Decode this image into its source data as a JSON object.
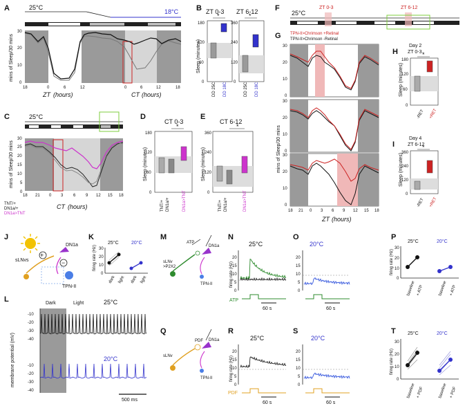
{
  "panels": {
    "A": {
      "letter": "A",
      "temp_left": "25°C",
      "temp_right": "18°C",
      "ylabel": "mins of Sleep/30 mins",
      "zt_label": "ZT",
      "ct_label": "CT",
      "hours": "(hours)",
      "yticks": [
        "0",
        "10",
        "20",
        "30"
      ],
      "xticks_zt": [
        "18",
        "0",
        "6",
        "12"
      ],
      "xticks_ct": [
        "0",
        "6",
        "12",
        "18"
      ]
    },
    "B": {
      "letter": "B",
      "title1": "ZT 0-3",
      "title2": "ZT 6-12",
      "ylabel": "Sleep (minutes)",
      "yticks": [
        "0",
        "60",
        "120",
        "180"
      ],
      "yticks2": [
        "0",
        "120",
        "240",
        "360"
      ],
      "xl1": "DD 25C",
      "xl2": "DD 18C",
      "star": "*"
    },
    "C": {
      "letter": "C",
      "temp": "25°C",
      "ylabel": "mins of Sleep/30 mins",
      "xlabel": "CT",
      "hours": "(hours)",
      "yticks": [
        "0",
        "5",
        "10",
        "15",
        "20",
        "25",
        "30"
      ],
      "xticks": [
        "18",
        "21",
        "0",
        "3",
        "6",
        "9",
        "12",
        "15",
        "18"
      ],
      "legend": [
        "TNT/+",
        "DN1a/+",
        "DN1a>TNT"
      ]
    },
    "D": {
      "letter": "D",
      "title": "CT 0-3",
      "ylabel": "Sleep (minutes)",
      "yticks": [
        "0",
        "60",
        "120",
        "180"
      ],
      "xl": [
        "TNT/+",
        "DN1a/+",
        "DN1a>TNT"
      ],
      "star": "*"
    },
    "E": {
      "letter": "E",
      "title": "CT 6-12",
      "ylabel": "Sleep (minutes)",
      "yticks": [
        "0",
        "120",
        "240",
        "360"
      ],
      "xl": [
        "TNT/+",
        "DN1a/+",
        "DN1a>TNT"
      ],
      "star": "*"
    },
    "F": {
      "letter": "F",
      "temp": "25°C",
      "w1": "ZT 0-3",
      "w2": "ZT 6-12"
    },
    "G": {
      "letter": "G",
      "leg1": "TPN-II>Chrimson +Retinal",
      "leg2": "TPN-II>Chrimson -Retinal",
      "ylabel": "mins of Sleep/30 mins",
      "xlabel": "ZT",
      "hours": "(hours)",
      "xticks": [
        "18",
        "21",
        "0",
        "3",
        "6",
        "9",
        "12",
        "15",
        "18"
      ],
      "yticks": [
        "0",
        "10",
        "20",
        "30"
      ]
    },
    "H": {
      "letter": "H",
      "title1": "Day 2",
      "title2": "ZT 0-3",
      "ylabel": "Sleep (minutes)",
      "yticks": [
        "0",
        "60",
        "120",
        "180"
      ],
      "xl": [
        "-RET",
        "+RET"
      ],
      "star": "*"
    },
    "I": {
      "letter": "I",
      "title1": "Day 4",
      "title2": "ZT 6-12",
      "ylabel": "Sleep (minutes)",
      "yticks": [
        "0",
        "120",
        "240",
        "360"
      ],
      "xl": [
        "-RET",
        "+RET"
      ],
      "star": "*"
    },
    "J": {
      "letter": "J",
      "n1": "DN1a",
      "n2": "sLNvs",
      "n3": "TPN-II",
      "plus": "+",
      "minus": "−"
    },
    "K": {
      "letter": "K",
      "t1": "25°C",
      "t2": "20°C",
      "ylabel": "firing rate (Hz)",
      "yticks": [
        "0",
        "10",
        "20",
        "30"
      ],
      "x1": "dark",
      "x2": "light"
    },
    "L": {
      "letter": "L",
      "dark": "Dark",
      "light": "Light",
      "t1": "25°C",
      "t2": "20°C",
      "ylabel": "membrane potential (mV)",
      "yticks": [
        "-10",
        "-20",
        "-30",
        "-40"
      ],
      "scale": "500 ms"
    },
    "M": {
      "letter": "M",
      "a1": "sLNv",
      "a2": ">P2X2",
      "n1": "DN1a",
      "n2": "TPN-II",
      "atp": "ATP"
    },
    "N": {
      "letter": "N",
      "temp": "25°C",
      "ylabel": "firing rate (Hz)",
      "yticks": [
        "0",
        "5",
        "10",
        "15",
        "20"
      ],
      "stim": "ATP",
      "scale": "60 s"
    },
    "O": {
      "letter": "O",
      "temp": "20°C",
      "yticks": [
        "0",
        "5",
        "10",
        "15",
        "20"
      ],
      "scale": "60 s"
    },
    "P": {
      "letter": "P",
      "t1": "25°C",
      "t2": "20°C",
      "ylabel": "firing rate (Hz)",
      "yticks": [
        "0",
        "10",
        "20",
        "30"
      ],
      "x1": "baseline",
      "x2": "+ ATP"
    },
    "Q": {
      "letter": "Q",
      "a1": "sLNv",
      "n1": "DN1a",
      "n2": "TPN-II",
      "pdf": "PDF"
    },
    "R": {
      "letter": "R",
      "temp": "25°C",
      "ylabel": "firing rate (Hz)",
      "yticks": [
        "0",
        "5",
        "10",
        "15",
        "20"
      ],
      "stim": "PDF",
      "scale": "60 s"
    },
    "S": {
      "letter": "S",
      "temp": "20°C",
      "yticks": [
        "0",
        "5",
        "10",
        "15",
        "20"
      ],
      "scale": "60 s"
    },
    "T": {
      "letter": "T",
      "t1": "25°C",
      "t2": "20°C",
      "ylabel": "firing rate (Hz)",
      "yticks": [
        "0",
        "10",
        "20",
        "30"
      ],
      "x1": "baseline",
      "x2": "+ PDF"
    }
  },
  "colors": {
    "magenta": "#cc33cc",
    "blue": "#3333cc",
    "red": "#cc2222",
    "green": "#2e8b2e",
    "orange": "#e0a020",
    "grey": "#bbbbbb",
    "darkgrey": "#9a9a9a"
  }
}
